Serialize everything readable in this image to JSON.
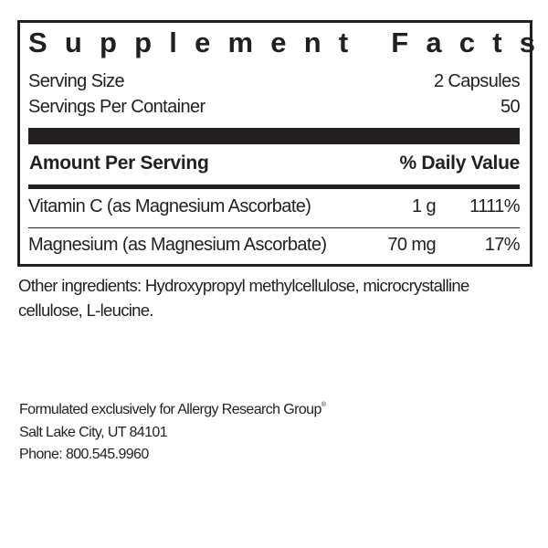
{
  "panel": {
    "title": "Supplement Facts",
    "serving_size_label": "Serving Size",
    "serving_size_value": "2 Capsules",
    "servings_per_container_label": "Servings Per Container",
    "servings_per_container_value": "50",
    "amount_header": "Amount Per Serving",
    "dv_header": "% Daily Value",
    "rows": [
      {
        "name": "Vitamin C (as Magnesium Ascorbate)",
        "amount": "1 g",
        "dv": "1111%"
      },
      {
        "name": "Magnesium (as Magnesium Ascorbate)",
        "amount": "70 mg",
        "dv": "17%"
      }
    ]
  },
  "other_ingredients": {
    "line1": "Other ingredients: Hydroxypropyl methylcellulose, microcrystalline",
    "line2": "cellulose, L-leucine."
  },
  "footer": {
    "formulated": "Formulated exclusively for Allergy Research Group",
    "registered_mark": "®",
    "address": "Salt Lake City, UT 84101",
    "phone": "Phone: 800.545.9960"
  }
}
